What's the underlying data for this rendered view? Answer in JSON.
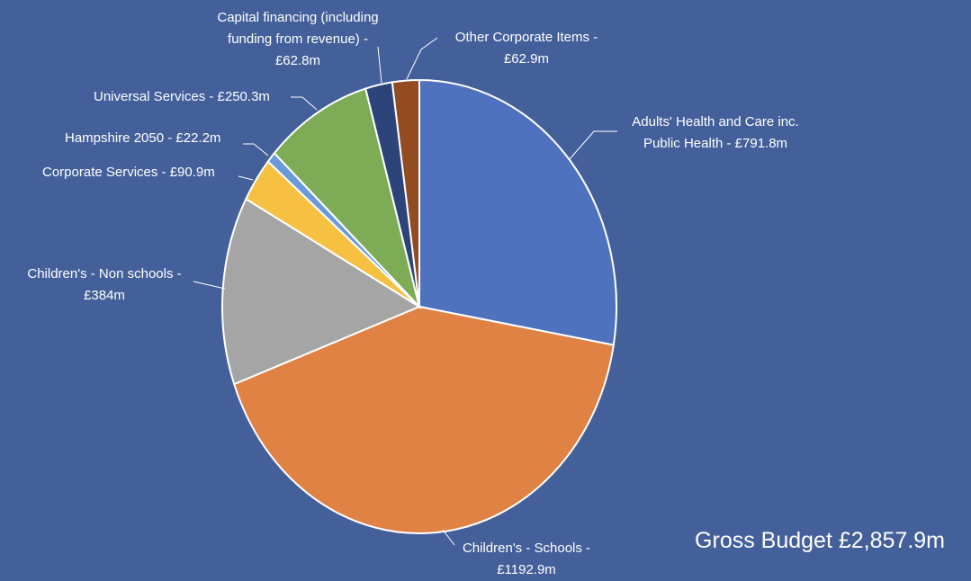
{
  "chart_data": {
    "type": "pie",
    "total_label": "Gross Budget £2,857.9m",
    "slices": [
      {
        "name": "Adults' Health and Care inc. Public Health",
        "value": 791.8,
        "label_lines": [
          "Adults' Health and Care inc.",
          "Public Health - £791.8m"
        ],
        "color": "#4F72BE"
      },
      {
        "name": "Children's - Schools",
        "value": 1192.9,
        "label_lines": [
          "Children's - Schools -",
          "£1192.9m"
        ],
        "color": "#DF8244"
      },
      {
        "name": "Children's - Non schools",
        "value": 384,
        "label_lines": [
          "Children's - Non schools -",
          "£384m"
        ],
        "color": "#A5A5A5"
      },
      {
        "name": "Corporate Services",
        "value": 90.9,
        "label_lines": [
          "Corporate Services  - £90.9m"
        ],
        "color": "#F6C143"
      },
      {
        "name": "Hampshire 2050",
        "value": 22.2,
        "label_lines": [
          "Hampshire 2050 - £22.2m"
        ],
        "color": "#6A9BD8"
      },
      {
        "name": "Universal Services",
        "value": 250.3,
        "label_lines": [
          "Universal Services - £250.3m"
        ],
        "color": "#7EAB55"
      },
      {
        "name": "Capital financing (including funding from revenue)",
        "value": 62.8,
        "label_lines": [
          "Capital financing (including",
          "funding from revenue) -",
          "£62.8m"
        ],
        "color": "#2C4479"
      },
      {
        "name": "Other Corporate Items",
        "value": 62.9,
        "label_lines": [
          "Other Corporate Items -",
          "£62.9m"
        ],
        "color": "#934B21"
      }
    ]
  }
}
